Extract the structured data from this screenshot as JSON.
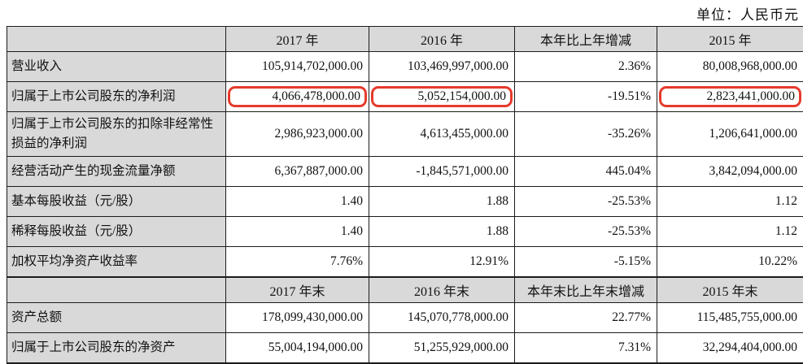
{
  "unit_label": "单位：人民币元",
  "colors": {
    "header_bg": "#d9d9d9",
    "label_bg": "#d9d9d9",
    "border": "#1c1c1c",
    "highlight_box": "#e53a2b"
  },
  "table": {
    "header1": [
      "",
      "2017 年",
      "2016 年",
      "本年比上年增减",
      "2015 年"
    ],
    "section1": [
      {
        "label": "营业收入",
        "values": [
          "105,914,702,000.00",
          "103,469,997,000.00",
          "2.36%",
          "80,008,968,000.00"
        ],
        "highlight": [
          false,
          false,
          false,
          false
        ]
      },
      {
        "label": "归属于上市公司股东的净利润",
        "values": [
          "4,066,478,000.00",
          "5,052,154,000.00",
          "-19.51%",
          "2,823,441,000.00"
        ],
        "highlight": [
          true,
          true,
          false,
          true
        ]
      },
      {
        "label": "归属于上市公司股东的扣除非经常性损益的净利润",
        "values": [
          "2,986,923,000.00",
          "4,613,455,000.00",
          "-35.26%",
          "1,206,641,000.00"
        ],
        "highlight": [
          false,
          false,
          false,
          false
        ]
      },
      {
        "label": "经营活动产生的现金流量净额",
        "values": [
          "6,367,887,000.00",
          "-1,845,571,000.00",
          "445.04%",
          "3,842,094,000.00"
        ],
        "highlight": [
          false,
          false,
          false,
          false
        ]
      },
      {
        "label": "基本每股收益（元/股）",
        "values": [
          "1.40",
          "1.88",
          "-25.53%",
          "1.12"
        ],
        "highlight": [
          false,
          false,
          false,
          false
        ]
      },
      {
        "label": "稀释每股收益（元/股）",
        "values": [
          "1.40",
          "1.88",
          "-25.53%",
          "1.12"
        ],
        "highlight": [
          false,
          false,
          false,
          false
        ]
      },
      {
        "label": "加权平均净资产收益率",
        "values": [
          "7.76%",
          "12.91%",
          "-5.15%",
          "10.22%"
        ],
        "highlight": [
          false,
          false,
          false,
          false
        ]
      }
    ],
    "header2": [
      "",
      "2017 年末",
      "2016 年末",
      "本年末比上年末增减",
      "2015 年末"
    ],
    "section2": [
      {
        "label": "资产总额",
        "values": [
          "178,099,430,000.00",
          "145,070,778,000.00",
          "22.77%",
          "115,485,755,000.00"
        ],
        "highlight": [
          false,
          false,
          false,
          false
        ]
      },
      {
        "label": "归属于上市公司股东的净资产",
        "values": [
          "55,004,194,000.00",
          "51,255,929,000.00",
          "7.31%",
          "32,294,404,000.00"
        ],
        "highlight": [
          false,
          false,
          false,
          false
        ]
      }
    ]
  }
}
